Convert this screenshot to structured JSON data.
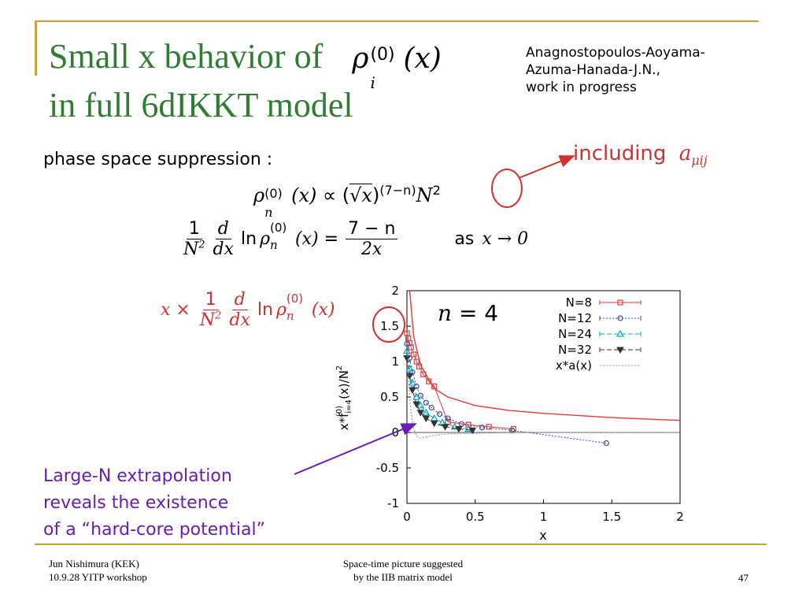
{
  "colors": {
    "title": "#2e7d32",
    "accent_bar": "#c8a233",
    "red": "#d32f2f",
    "purple": "#6a1bbb"
  },
  "title": {
    "line1": "Small x behavior of",
    "line2": "in full 6dIKKT model",
    "rho": "ρ",
    "sub_i": "i",
    "sup_0": "(0)",
    "arg_x": "(x)"
  },
  "authors": [
    "Anagnostopoulos-Aoyama-",
    "Azuma-Hanada-J.N.,",
    "work in progress"
  ],
  "annotation": {
    "including": "including",
    "a_sym": "a",
    "a_sub": "μij"
  },
  "phase_label": "phase space suppression :",
  "eq1": {
    "rho": "ρ",
    "sub_n": "n",
    "sup_0": "(0)",
    "x": "(x)",
    "prop": " ∝ (",
    "sqrtx": "√x",
    "close": ")",
    "exponent": "(7−n)",
    "N": "N",
    "N_sup": "2"
  },
  "eq2": {
    "one": "1",
    "N2": "N",
    "sq": "2",
    "d": "d",
    "dx": "dx",
    "ln": "ln",
    "rho": "ρ",
    "sub_n": "n",
    "sup_0": "(0)",
    "x": "(x)",
    "eq": " = ",
    "num": "7 − n",
    "den": "2x",
    "as": "as",
    "limit": "x → 0"
  },
  "eq3": {
    "x": "x",
    "times": " × ",
    "one": "1",
    "N2": "N",
    "sq": "2",
    "d": "d",
    "dx": "dx",
    "ln": "ln",
    "rho": "ρ",
    "sub_n": "n",
    "sup_0": "(0)",
    "arg": "(x)"
  },
  "chart_label": {
    "n": "n",
    "eq": " = 4"
  },
  "extrapolation_note": [
    "Large-N extrapolation",
    "reveals the existence",
    "of a “hard-core potential”"
  ],
  "footer": {
    "left": [
      "Jun Nishimura (KEK)",
      "10.9.28 YITP workshop"
    ],
    "center": [
      "Space-time picture suggested",
      "by the IIB matrix model"
    ],
    "page": "47"
  },
  "chart_data": {
    "type": "scatter",
    "xlabel": "x",
    "ylabel": "x*f",
    "ylabel_sub": "i=4",
    "ylabel_sup": "(0)",
    "ylabel_tail": "(x)/N",
    "ylabel_tail_sup": "2",
    "xlim": [
      0,
      2
    ],
    "ylim": [
      -1,
      2
    ],
    "xticks": [
      "0",
      "0.5",
      "1",
      "1.5",
      "2"
    ],
    "yticks": [
      "2",
      "1.5",
      "1",
      "0.5",
      "0",
      "-0.5",
      "-1"
    ],
    "legend_position": "top-right",
    "series": [
      {
        "name": "N=8",
        "color": "#e53935",
        "marker": "square",
        "line": "solid",
        "x": [
          0.0,
          0.01,
          0.02,
          0.03,
          0.05,
          0.07,
          0.09,
          0.12,
          0.16,
          0.2,
          0.3,
          0.45,
          0.6,
          0.78
        ],
        "y": [
          1.4,
          1.33,
          1.26,
          1.2,
          1.1,
          1.0,
          0.93,
          0.82,
          0.72,
          0.65,
          0.15,
          0.11,
          0.08,
          0.05
        ]
      },
      {
        "name": "N=12",
        "color": "#3949ab",
        "marker": "circle",
        "line": "dotted",
        "x": [
          0.0,
          0.02,
          0.04,
          0.07,
          0.1,
          0.14,
          0.18,
          0.24,
          0.3,
          0.4,
          0.55,
          0.77,
          1.46
        ],
        "y": [
          1.25,
          1.05,
          0.85,
          0.65,
          0.52,
          0.42,
          0.35,
          0.26,
          0.2,
          0.12,
          0.07,
          0.03,
          -0.15
        ]
      },
      {
        "name": "N=24",
        "color": "#00acc1",
        "marker": "triangle-up",
        "line": "dashed",
        "x": [
          0.0,
          0.02,
          0.04,
          0.07,
          0.1,
          0.14,
          0.2,
          0.26,
          0.35,
          0.45
        ],
        "y": [
          1.15,
          0.9,
          0.7,
          0.5,
          0.38,
          0.28,
          0.2,
          0.14,
          0.08,
          0.05
        ]
      },
      {
        "name": "N=32",
        "color": "#333333",
        "marker": "triangle-down",
        "line": "dashed",
        "x": [
          0.0,
          0.02,
          0.04,
          0.07,
          0.1,
          0.14,
          0.2,
          0.28,
          0.38,
          0.48
        ],
        "y": [
          1.05,
          0.8,
          0.6,
          0.4,
          0.28,
          0.2,
          0.13,
          0.08,
          0.05,
          0.03
        ]
      },
      {
        "name": "x*a(x)",
        "color": "#888888",
        "marker": "none",
        "line": "dotted",
        "x": [
          0.0,
          0.01,
          0.02,
          0.03,
          0.05,
          0.07,
          0.1,
          0.15,
          0.2,
          0.3,
          0.5,
          0.8,
          1.2,
          2.0
        ],
        "y": [
          1.4,
          0.85,
          0.5,
          0.28,
          0.05,
          -0.05,
          -0.08,
          -0.06,
          -0.04,
          -0.02,
          -0.01,
          0,
          0,
          0
        ]
      },
      {
        "name": "",
        "color": "#e53935",
        "marker": "none",
        "line": "solid",
        "x": [
          0.02,
          0.05,
          0.1,
          0.2,
          0.3,
          0.5,
          0.75,
          1.0,
          1.25,
          1.5,
          1.75,
          2.0
        ],
        "y": [
          2.0,
          1.35,
          0.95,
          0.62,
          0.5,
          0.38,
          0.31,
          0.27,
          0.24,
          0.21,
          0.19,
          0.17
        ]
      }
    ]
  }
}
